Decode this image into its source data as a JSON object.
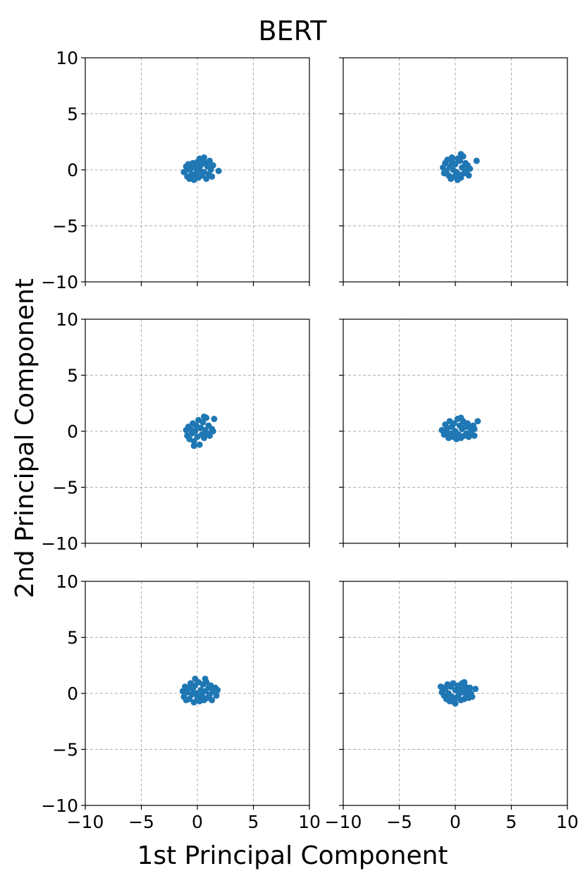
{
  "chart_data": {
    "type": "scatter",
    "title": "BERT",
    "xlabel": "1st Principal Component",
    "ylabel": "2nd Principal Component",
    "xlim": [
      -10,
      10
    ],
    "ylim": [
      -10,
      10
    ],
    "xticks": [
      "−10",
      "−5",
      "0",
      "5",
      "10"
    ],
    "yticks": [
      "−10",
      "−5",
      "0",
      "5",
      "10"
    ],
    "grid": true,
    "point_color": "#1f77b4",
    "layout": "3 rows x 2 columns, shared axes",
    "panels": [
      {
        "points": [
          [
            -1.2,
            -0.2
          ],
          [
            -1.0,
            0.3
          ],
          [
            -0.9,
            -0.6
          ],
          [
            -0.8,
            0.5
          ],
          [
            -0.7,
            -0.8
          ],
          [
            -0.6,
            0.1
          ],
          [
            -0.5,
            -0.4
          ],
          [
            -0.4,
            0.6
          ],
          [
            -0.3,
            -0.9
          ],
          [
            -0.2,
            0.2
          ],
          [
            -0.1,
            -0.3
          ],
          [
            0.0,
            0.7
          ],
          [
            0.1,
            -0.7
          ],
          [
            0.2,
            0.0
          ],
          [
            0.3,
            0.4
          ],
          [
            0.4,
            -0.5
          ],
          [
            0.5,
            0.9
          ],
          [
            0.6,
            -0.2
          ],
          [
            0.7,
            0.6
          ],
          [
            0.8,
            -0.8
          ],
          [
            0.9,
            0.3
          ],
          [
            1.0,
            -0.4
          ],
          [
            1.1,
            0.8
          ],
          [
            1.2,
            0.0
          ],
          [
            1.3,
            -0.6
          ],
          [
            1.4,
            0.4
          ],
          [
            0.6,
            1.1
          ],
          [
            0.2,
            1.0
          ],
          [
            -0.3,
            -0.6
          ],
          [
            -0.9,
            0.0
          ],
          [
            1.9,
            -0.1
          ]
        ]
      },
      {
        "points": [
          [
            -1.1,
            0.2
          ],
          [
            -1.0,
            -0.3
          ],
          [
            -0.9,
            0.6
          ],
          [
            -0.8,
            -0.1
          ],
          [
            -0.7,
            0.9
          ],
          [
            -0.6,
            -0.5
          ],
          [
            -0.5,
            0.3
          ],
          [
            -0.4,
            -0.8
          ],
          [
            -0.3,
            0.7
          ],
          [
            -0.2,
            0.0
          ],
          [
            -0.1,
            -0.6
          ],
          [
            0.0,
            0.5
          ],
          [
            0.1,
            -0.2
          ],
          [
            0.2,
            1.0
          ],
          [
            0.3,
            -0.4
          ],
          [
            0.4,
            0.8
          ],
          [
            0.5,
            -0.7
          ],
          [
            0.6,
            0.2
          ],
          [
            0.7,
            1.2
          ],
          [
            0.8,
            -0.3
          ],
          [
            0.9,
            0.6
          ],
          [
            1.0,
            -0.1
          ],
          [
            1.1,
            0.4
          ],
          [
            1.2,
            -0.5
          ],
          [
            1.3,
            0.1
          ],
          [
            -0.3,
            1.1
          ],
          [
            0.5,
            1.4
          ],
          [
            0.2,
            -0.9
          ],
          [
            1.9,
            0.8
          ]
        ]
      },
      {
        "points": [
          [
            -1.0,
            0.1
          ],
          [
            -0.9,
            -0.4
          ],
          [
            -0.8,
            0.4
          ],
          [
            -0.7,
            -0.7
          ],
          [
            -0.6,
            0.2
          ],
          [
            -0.5,
            -0.2
          ],
          [
            -0.4,
            0.7
          ],
          [
            -0.3,
            -0.9
          ],
          [
            -0.2,
            0.0
          ],
          [
            -0.1,
            0.5
          ],
          [
            0.0,
            -0.5
          ],
          [
            0.1,
            1.0
          ],
          [
            0.2,
            -1.2
          ],
          [
            0.3,
            0.3
          ],
          [
            0.4,
            -0.3
          ],
          [
            0.5,
            0.8
          ],
          [
            0.6,
            -0.6
          ],
          [
            0.7,
            0.1
          ],
          [
            0.8,
            1.2
          ],
          [
            0.9,
            -0.2
          ],
          [
            1.0,
            0.5
          ],
          [
            1.1,
            -0.4
          ],
          [
            1.3,
            0.2
          ],
          [
            -0.3,
            -1.3
          ],
          [
            0.6,
            1.3
          ],
          [
            0.0,
            0.3
          ],
          [
            1.4,
            0.0
          ],
          [
            1.5,
            1.1
          ]
        ]
      },
      {
        "points": [
          [
            -1.2,
            0.1
          ],
          [
            -1.0,
            -0.3
          ],
          [
            -0.9,
            0.6
          ],
          [
            -0.8,
            -0.1
          ],
          [
            -0.7,
            0.3
          ],
          [
            -0.6,
            -0.6
          ],
          [
            -0.5,
            0.9
          ],
          [
            -0.4,
            -0.2
          ],
          [
            -0.3,
            0.4
          ],
          [
            -0.2,
            -0.5
          ],
          [
            -0.1,
            0.7
          ],
          [
            0.0,
            0.0
          ],
          [
            0.1,
            -0.7
          ],
          [
            0.2,
            1.1
          ],
          [
            0.3,
            -0.3
          ],
          [
            0.4,
            0.5
          ],
          [
            0.5,
            -0.6
          ],
          [
            0.6,
            0.2
          ],
          [
            0.7,
            0.9
          ],
          [
            0.8,
            -0.4
          ],
          [
            0.9,
            0.4
          ],
          [
            1.0,
            -0.2
          ],
          [
            1.1,
            0.7
          ],
          [
            1.2,
            -0.5
          ],
          [
            1.3,
            0.3
          ],
          [
            1.4,
            -0.1
          ],
          [
            1.6,
            0.5
          ],
          [
            1.7,
            0.2
          ],
          [
            1.7,
            -0.4
          ],
          [
            2.0,
            0.9
          ],
          [
            0.5,
            1.2
          ]
        ]
      },
      {
        "points": [
          [
            -1.3,
            0.2
          ],
          [
            -1.2,
            -0.3
          ],
          [
            -1.1,
            0.6
          ],
          [
            -1.0,
            -0.6
          ],
          [
            -0.9,
            0.1
          ],
          [
            -0.8,
            0.5
          ],
          [
            -0.7,
            -0.5
          ],
          [
            -0.6,
            0.9
          ],
          [
            -0.5,
            -0.1
          ],
          [
            -0.4,
            0.4
          ],
          [
            -0.3,
            -0.8
          ],
          [
            -0.2,
            0.7
          ],
          [
            -0.1,
            0.0
          ],
          [
            0.0,
            -0.4
          ],
          [
            0.1,
            1.0
          ],
          [
            0.2,
            -0.7
          ],
          [
            0.3,
            0.3
          ],
          [
            0.4,
            -0.2
          ],
          [
            0.5,
            0.8
          ],
          [
            0.6,
            -0.6
          ],
          [
            0.7,
            0.2
          ],
          [
            0.8,
            1.0
          ],
          [
            0.9,
            -0.4
          ],
          [
            1.0,
            0.5
          ],
          [
            1.1,
            -0.1
          ],
          [
            1.2,
            0.7
          ],
          [
            1.3,
            -0.6
          ],
          [
            1.4,
            0.2
          ],
          [
            1.6,
            0.5
          ],
          [
            1.7,
            -0.2
          ],
          [
            1.8,
            0.3
          ],
          [
            -0.2,
            1.3
          ],
          [
            0.7,
            1.3
          ]
        ]
      },
      {
        "points": [
          [
            -1.3,
            0.6
          ],
          [
            -1.2,
            0.1
          ],
          [
            -1.1,
            0.5
          ],
          [
            -1.0,
            -0.2
          ],
          [
            -0.9,
            0.4
          ],
          [
            -0.8,
            -0.5
          ],
          [
            -0.7,
            0.8
          ],
          [
            -0.6,
            0.0
          ],
          [
            -0.5,
            -0.7
          ],
          [
            -0.4,
            0.6
          ],
          [
            -0.3,
            -0.3
          ],
          [
            -0.2,
            0.9
          ],
          [
            -0.1,
            -0.8
          ],
          [
            0.0,
            0.3
          ],
          [
            0.1,
            -0.4
          ],
          [
            0.2,
            0.7
          ],
          [
            0.3,
            -0.1
          ],
          [
            0.4,
            0.4
          ],
          [
            0.5,
            -0.6
          ],
          [
            0.6,
            0.9
          ],
          [
            0.7,
            0.1
          ],
          [
            0.8,
            -0.5
          ],
          [
            0.9,
            0.6
          ],
          [
            1.0,
            -0.2
          ],
          [
            1.1,
            0.3
          ],
          [
            1.2,
            -0.4
          ],
          [
            1.3,
            0.5
          ],
          [
            1.4,
            0.0
          ],
          [
            1.5,
            -0.3
          ],
          [
            1.8,
            0.4
          ],
          [
            0.0,
            -0.9
          ],
          [
            0.8,
            1.0
          ]
        ]
      }
    ]
  }
}
